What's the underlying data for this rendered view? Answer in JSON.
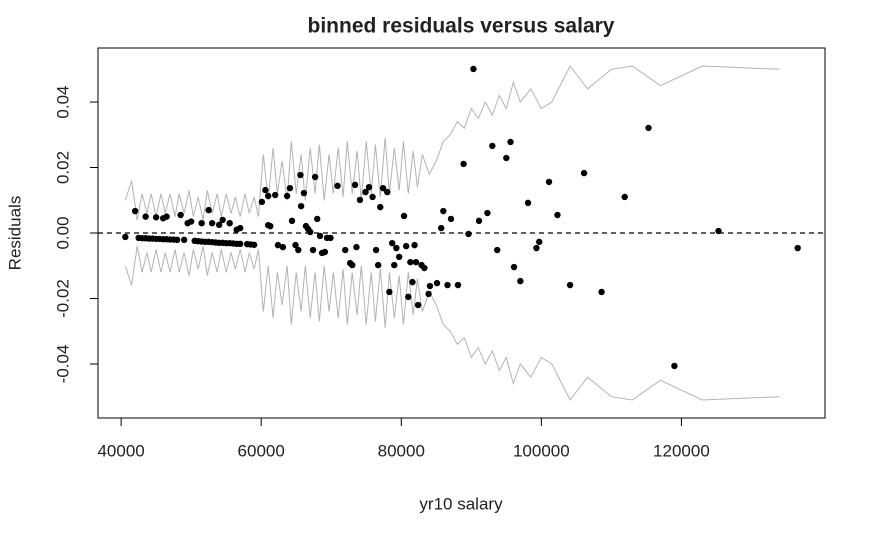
{
  "chart_data": {
    "type": "scatter",
    "title": "binned residuals versus salary",
    "x_label": "yr10 salary",
    "y_label": "Residuals",
    "xlim": [
      36700,
      140500
    ],
    "ylim": [
      -0.0565,
      0.0565
    ],
    "xticks": [
      40000,
      60000,
      80000,
      100000,
      120000
    ],
    "yticks": [
      -0.04,
      -0.02,
      {
        "value": 0,
        "label": "0.00"
      },
      0.02,
      0.04
    ],
    "points": {
      "color": "#000000",
      "x": [
        40600,
        42000,
        42500,
        43000,
        43500,
        43500,
        44000,
        44500,
        45000,
        45000,
        45500,
        46000,
        46000,
        46500,
        46500,
        47000,
        47500,
        48000,
        48500,
        49000,
        49500,
        50000,
        50500,
        51000,
        51500,
        51500,
        52000,
        52500,
        52500,
        53000,
        53000,
        53500,
        54000,
        54000,
        54500,
        54500,
        55000,
        55500,
        55500,
        56000,
        56500,
        56500,
        57000,
        57000,
        58000,
        58500,
        59000,
        60100,
        60600,
        61000,
        61000,
        61300,
        62000,
        62400,
        63100,
        63700,
        64100,
        64400,
        64900,
        65300,
        65600,
        65700,
        66100,
        66400,
        66700,
        67000,
        67400,
        67700,
        68000,
        68400,
        68700,
        69100,
        69400,
        69900,
        70900,
        72000,
        72700,
        73000,
        73400,
        73600,
        74100,
        74900,
        75400,
        75900,
        76400,
        76700,
        77000,
        77400,
        78000,
        78300,
        78700,
        79000,
        79300,
        79700,
        80400,
        80700,
        81000,
        81300,
        81600,
        81900,
        82100,
        82400,
        82900,
        83300,
        83900,
        84100,
        85100,
        85700,
        86000,
        86600,
        87100,
        88100,
        88900,
        89600,
        90300,
        91100,
        92300,
        93000,
        93700,
        95000,
        95600,
        96100,
        97000,
        98100,
        99300,
        99700,
        101100,
        102300,
        104100,
        106100,
        108600,
        111900,
        115300,
        119000,
        125300,
        136600
      ],
      "values": [
        -0.0012,
        0.0067,
        -0.0015,
        -0.0016,
        -0.0016,
        0.005,
        -0.0017,
        -0.0017,
        -0.0018,
        0.0048,
        -0.0018,
        -0.0019,
        0.0045,
        -0.0019,
        0.005,
        -0.002,
        -0.002,
        -0.0021,
        0.0055,
        -0.0021,
        0.003,
        0.0035,
        -0.0024,
        -0.0025,
        -0.0026,
        0.003,
        -0.0027,
        -0.0027,
        0.007,
        -0.0028,
        0.003,
        -0.0029,
        -0.003,
        0.0025,
        -0.003,
        0.004,
        -0.0031,
        -0.0031,
        0.003,
        -0.0032,
        -0.0033,
        0.001,
        -0.0033,
        0.0015,
        -0.0034,
        -0.0035,
        -0.0036,
        0.0095,
        0.0131,
        0.0113,
        0.0024,
        0.0021,
        0.0116,
        -0.0037,
        -0.0043,
        0.0113,
        0.0137,
        0.0037,
        -0.0037,
        -0.0052,
        0.0177,
        0.0082,
        0.0122,
        0.0021,
        0.0012,
        0.0003,
        -0.0052,
        0.0171,
        0.0043,
        -0.0009,
        -0.0061,
        -0.0058,
        -0.0015,
        -0.0015,
        0.0144,
        -0.0052,
        -0.0092,
        -0.0098,
        0.0147,
        -0.0043,
        0.0101,
        0.0125,
        0.014,
        0.011,
        -0.0052,
        -0.0098,
        0.0079,
        0.0137,
        0.0125,
        -0.018,
        -0.0031,
        -0.0098,
        -0.0046,
        -0.0073,
        0.0052,
        -0.004,
        -0.0195,
        -0.0089,
        -0.015,
        -0.0037,
        -0.0089,
        -0.022,
        -0.0098,
        -0.0107,
        -0.0186,
        -0.0162,
        -0.0153,
        0.0015,
        0.0067,
        -0.0159,
        0.0043,
        -0.0159,
        0.0211,
        -0.0003,
        0.0501,
        0.0037,
        0.0061,
        0.0266,
        -0.0052,
        0.0229,
        0.0278,
        -0.0104,
        -0.0147,
        0.0092,
        -0.0046,
        -0.0027,
        0.0156,
        0.0055,
        -0.0159,
        0.0183,
        -0.018,
        0.011,
        0.0321,
        -0.0406,
        0.0006,
        -0.0046
      ]
    },
    "bounds": [
      {
        "color": "#b3b3b3",
        "x": [
          40600,
          41500,
          42300,
          43000,
          43700,
          44300,
          45000,
          45700,
          46300,
          47000,
          47700,
          48300,
          49000,
          49700,
          50300,
          51000,
          51700,
          52300,
          53000,
          53700,
          54300,
          55000,
          55700,
          56300,
          57000,
          57700,
          58300,
          59000,
          59600,
          60300,
          61000,
          61700,
          62300,
          63000,
          63700,
          64300,
          65000,
          65700,
          66300,
          67000,
          67700,
          68300,
          69000,
          69700,
          70300,
          71000,
          71700,
          72300,
          73000,
          73700,
          74300,
          75000,
          75700,
          76300,
          77000,
          77700,
          78300,
          79000,
          79700,
          80300,
          81000,
          81700,
          82300,
          83000,
          84000,
          85000,
          86000,
          87000,
          88000,
          89000,
          90000,
          91000,
          92000,
          93000,
          94000,
          95000,
          96000,
          97000,
          98500,
          100000,
          101500,
          104100,
          106600,
          110000,
          113000,
          117000,
          123000,
          134000
        ],
        "values": [
          0.01,
          0.016,
          0.004,
          0.012,
          0.006,
          0.012,
          0.005,
          0.012,
          0.006,
          0.012,
          0.005,
          0.012,
          0.006,
          0.013,
          0.005,
          0.011,
          0.004,
          0.013,
          0.006,
          0.012,
          0.005,
          0.012,
          0.006,
          0.011,
          0.005,
          0.012,
          0.006,
          0.011,
          0.005,
          0.024,
          0.01,
          0.026,
          0.012,
          0.022,
          0.01,
          0.028,
          0.012,
          0.024,
          0.01,
          0.026,
          0.012,
          0.027,
          0.01,
          0.024,
          0.012,
          0.026,
          0.011,
          0.028,
          0.012,
          0.025,
          0.01,
          0.028,
          0.012,
          0.027,
          0.011,
          0.029,
          0.012,
          0.026,
          0.013,
          0.028,
          0.012,
          0.025,
          0.014,
          0.024,
          0.018,
          0.022,
          0.028,
          0.03,
          0.034,
          0.032,
          0.038,
          0.035,
          0.04,
          0.036,
          0.042,
          0.038,
          0.046,
          0.04,
          0.044,
          0.038,
          0.04,
          0.051,
          0.044,
          0.05,
          0.051,
          0.045,
          0.051,
          0.05
        ]
      },
      {
        "color": "#b3b3b3",
        "x": [
          40600,
          41500,
          42300,
          43000,
          43700,
          44300,
          45000,
          45700,
          46300,
          47000,
          47700,
          48300,
          49000,
          49700,
          50300,
          51000,
          51700,
          52300,
          53000,
          53700,
          54300,
          55000,
          55700,
          56300,
          57000,
          57700,
          58300,
          59000,
          59600,
          60300,
          61000,
          61700,
          62300,
          63000,
          63700,
          64300,
          65000,
          65700,
          66300,
          67000,
          67700,
          68300,
          69000,
          69700,
          70300,
          71000,
          71700,
          72300,
          73000,
          73700,
          74300,
          75000,
          75700,
          76300,
          77000,
          77700,
          78300,
          79000,
          79700,
          80300,
          81000,
          81700,
          82300,
          83000,
          84000,
          85000,
          86000,
          87000,
          88000,
          89000,
          90000,
          91000,
          92000,
          93000,
          94000,
          95000,
          96000,
          97000,
          98500,
          100000,
          101500,
          104100,
          106600,
          110000,
          113000,
          117000,
          123000,
          134000
        ],
        "values": [
          -0.01,
          -0.016,
          -0.004,
          -0.012,
          -0.006,
          -0.012,
          -0.005,
          -0.012,
          -0.006,
          -0.012,
          -0.005,
          -0.012,
          -0.006,
          -0.013,
          -0.005,
          -0.011,
          -0.004,
          -0.013,
          -0.006,
          -0.012,
          -0.005,
          -0.012,
          -0.006,
          -0.011,
          -0.005,
          -0.012,
          -0.006,
          -0.011,
          -0.005,
          -0.024,
          -0.01,
          -0.026,
          -0.012,
          -0.022,
          -0.01,
          -0.028,
          -0.012,
          -0.024,
          -0.01,
          -0.026,
          -0.012,
          -0.027,
          -0.01,
          -0.024,
          -0.012,
          -0.026,
          -0.011,
          -0.028,
          -0.012,
          -0.025,
          -0.01,
          -0.028,
          -0.012,
          -0.027,
          -0.011,
          -0.029,
          -0.012,
          -0.026,
          -0.013,
          -0.028,
          -0.012,
          -0.025,
          -0.014,
          -0.024,
          -0.018,
          -0.022,
          -0.028,
          -0.03,
          -0.034,
          -0.032,
          -0.038,
          -0.035,
          -0.04,
          -0.036,
          -0.042,
          -0.038,
          -0.046,
          -0.04,
          -0.044,
          -0.038,
          -0.04,
          -0.051,
          -0.044,
          -0.05,
          -0.051,
          -0.045,
          -0.051,
          -0.05
        ]
      }
    ],
    "reference_line": {
      "value": 0,
      "style": "dashed",
      "color": "#000000"
    }
  }
}
